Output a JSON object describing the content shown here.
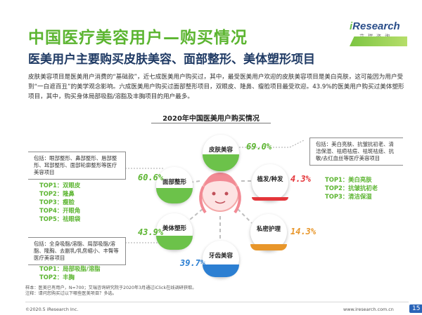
{
  "header": {
    "title": "中国医疗美容用户—购买情况",
    "subtitle": "医美用户主要购买皮肤美容、面部整形、美体塑形项目"
  },
  "logo": {
    "brand_prefix": "i",
    "brand_rest": "Research",
    "cn": "艾瑞咨询"
  },
  "lead_paragraph": "皮肤美容项目是医美用户消费的“基础款”，近七成医美用户购买过，其中，最受医美用户欢迎的皮肤美容项目是美白亮肤，这可能因为用户受到“一白遮百丑”的美学观念影响。六成医美用户购买过面部整形项目，双眼皮、隆鼻、瘦脸项目最受欢迎。43.9%的医美用户购买过美体塑形项目，其中，购买身体局部吸脂/溶脂及丰胸项目的用户最多。",
  "chart_title": "2020年中国医美用户购买情况",
  "chart_data": {
    "type": "diagram",
    "title": "2020年中国医美用户购买情况",
    "unit": "%",
    "items": [
      {
        "name": "皮肤美容",
        "value": 69.0,
        "label": "69.0%",
        "color": "#5cb531"
      },
      {
        "name": "面部整形",
        "value": 60.6,
        "label": "60.6%",
        "color": "#5cb531"
      },
      {
        "name": "植发/种发",
        "value": 4.3,
        "label": "4.3%",
        "color": "#e4353a"
      },
      {
        "name": "美体塑形",
        "value": 43.9,
        "label": "43.9%",
        "color": "#5cb531"
      },
      {
        "name": "私密护理",
        "value": 14.3,
        "label": "14.3%",
        "color": "#e8962a"
      },
      {
        "name": "牙齿美容",
        "value": 39.7,
        "label": "39.7%",
        "color": "#2c7fd2"
      }
    ]
  },
  "boxes": {
    "face": "包括：眼部整形、鼻部整形、唇部整形、耳部整形、面部轮廓整形等医疗美容项目",
    "skin": "包括：美白亮肤、抗皱抗初老、清洁保湿、祛疤祛痘、祛斑祛痣、抗敏/去红血丝等医疗美容项目",
    "body": "包括：全身吸脂/溶脂、局部吸脂/溶脂、隆胸、去副乳/乳房缩小、丰臀等医疗美容项目"
  },
  "tops": {
    "face": [
      "TOP1：双眼皮",
      "TOP2：隆鼻",
      "TOP3：瘦脸",
      "TOP4：开眼角",
      "TOP5：祛眼袋"
    ],
    "skin": [
      "TOP1：美白亮肤",
      "TOP2：抗皱抗初老",
      "TOP3：清洁保湿"
    ],
    "body": [
      "TOP1：局部吸脂/溶脂",
      "TOP2：丰胸"
    ]
  },
  "footnote": [
    "样本：医美已有用户，N=700；艾瑞咨询研究院于2020年3月通过iClick在线调研获取。",
    "注释：请问您购买过以下哪些医美项目？多选。"
  ],
  "footer": {
    "copyright": "©2020.5 iResearch Inc.",
    "site": "www.iresearch.com.cn",
    "page": "15"
  }
}
